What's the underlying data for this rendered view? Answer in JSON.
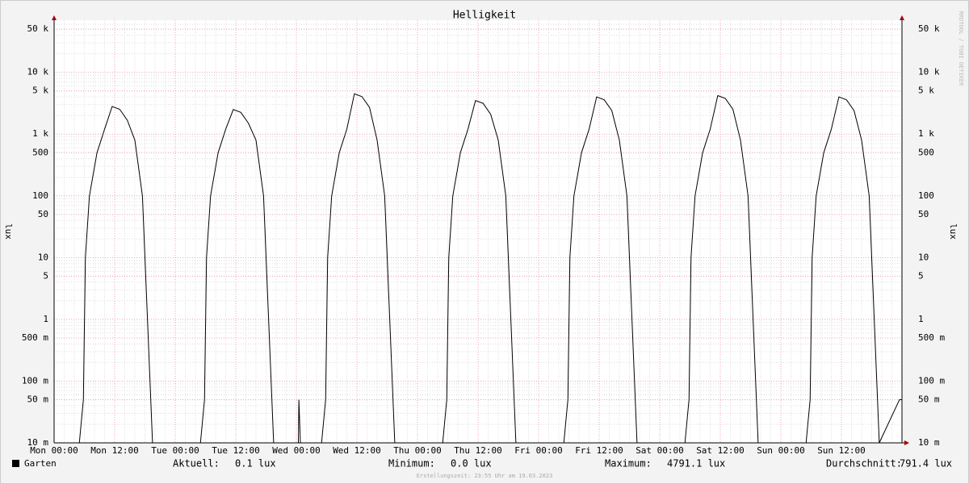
{
  "chart_data": {
    "type": "line",
    "title": "Helligkeit",
    "y_label": "lux",
    "log_y": true,
    "grid": true,
    "xlim": [
      0,
      168
    ],
    "ylim": [
      0.01,
      70000
    ],
    "xticks": [
      {
        "value": 0,
        "label": "Mon 00:00"
      },
      {
        "value": 12,
        "label": "Mon 12:00"
      },
      {
        "value": 24,
        "label": "Tue 00:00"
      },
      {
        "value": 36,
        "label": "Tue 12:00"
      },
      {
        "value": 48,
        "label": "Wed 00:00"
      },
      {
        "value": 60,
        "label": "Wed 12:00"
      },
      {
        "value": 72,
        "label": "Thu 00:00"
      },
      {
        "value": 84,
        "label": "Thu 12:00"
      },
      {
        "value": 96,
        "label": "Fri 00:00"
      },
      {
        "value": 108,
        "label": "Fri 12:00"
      },
      {
        "value": 120,
        "label": "Sat 00:00"
      },
      {
        "value": 132,
        "label": "Sat 12:00"
      },
      {
        "value": 144,
        "label": "Sun 00:00"
      },
      {
        "value": 156,
        "label": "Sun 12:00"
      }
    ],
    "yticks": [
      {
        "value": 0.01,
        "label": "10 m"
      },
      {
        "value": 0.05,
        "label": "50 m"
      },
      {
        "value": 0.1,
        "label": "100 m"
      },
      {
        "value": 0.5,
        "label": "500 m"
      },
      1,
      5,
      10,
      50,
      100,
      500,
      {
        "value": 1000,
        "label": "1 k"
      },
      {
        "value": 5000,
        "label": "5 k"
      },
      {
        "value": 10000,
        "label": "10 k"
      },
      {
        "value": 50000,
        "label": "50 k"
      }
    ],
    "series": [
      {
        "name": "Garten",
        "color": "#000000",
        "x": [
          0,
          5,
          5.8,
          6.2,
          7,
          8.5,
          10,
          11.5,
          13,
          14.5,
          16,
          17.5,
          18.5,
          19.5,
          29,
          29.8,
          30.2,
          31,
          32.5,
          34,
          35.5,
          37,
          38.5,
          40,
          41.5,
          42.5,
          43.5,
          48.4,
          48.5,
          48.8,
          53,
          53.8,
          54.2,
          55,
          56.5,
          58,
          59.5,
          61,
          62.5,
          64,
          65.5,
          66.5,
          67.5,
          77,
          77.8,
          78.2,
          79,
          80.5,
          82,
          83.5,
          85,
          86.5,
          88,
          89.5,
          90.5,
          91.5,
          101,
          101.8,
          102.2,
          103,
          104.5,
          106,
          107.5,
          109,
          110.5,
          112,
          113.5,
          114.5,
          115.5,
          125,
          125.8,
          126.2,
          127,
          128.5,
          130,
          131.5,
          133,
          134.5,
          136,
          137.5,
          138.5,
          139.5,
          149,
          149.8,
          150.2,
          151,
          152.5,
          154,
          155.5,
          157,
          158.5,
          160,
          161.5,
          162.5,
          163.5,
          167.5,
          168
        ],
        "values": [
          0.01,
          0.01,
          0.05,
          10,
          100,
          500,
          1200,
          2800,
          2520,
          1680,
          800,
          100,
          1,
          0.01,
          0.01,
          0.05,
          10,
          100,
          500,
          1200,
          2500,
          2250,
          1500,
          800,
          100,
          1,
          0.01,
          0.01,
          0.05,
          0.01,
          0.01,
          0.05,
          10,
          100,
          500,
          1200,
          4500,
          4050,
          2700,
          800,
          100,
          1,
          0.01,
          0.01,
          0.05,
          10,
          100,
          500,
          1200,
          3500,
          3150,
          2100,
          800,
          100,
          1,
          0.01,
          0.01,
          0.05,
          10,
          100,
          500,
          1200,
          4000,
          3600,
          2400,
          800,
          100,
          1,
          0.01,
          0.01,
          0.05,
          10,
          100,
          500,
          1200,
          4200,
          3780,
          2520,
          800,
          100,
          1,
          0.01,
          0.01,
          0.05,
          10,
          100,
          500,
          1200,
          4000,
          3600,
          2400,
          800,
          100,
          1,
          0.01,
          0.05,
          0.05
        ]
      }
    ],
    "stats": [
      {
        "label": "Aktuell:",
        "value": "0.1 lux"
      },
      {
        "label": "Minimum:",
        "value": "0.0 lux"
      },
      {
        "label": "Maximum:",
        "value": "4791.1 lux"
      },
      {
        "label": "Durchschnitt:",
        "value": "791.4 lux"
      }
    ],
    "watermark": "RRDTOOL / TOBI OETIKER",
    "footer": "Erstellungszeit: 23:55 Uhr am 19.03.2023"
  }
}
